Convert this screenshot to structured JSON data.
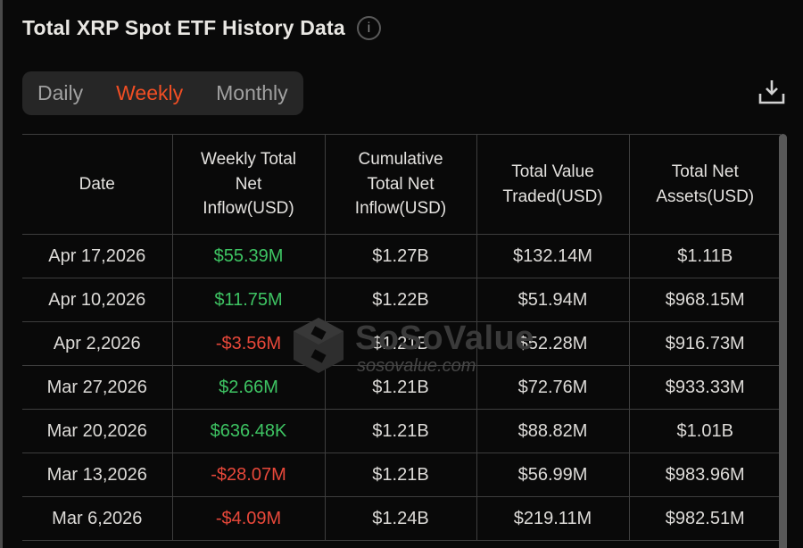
{
  "header": {
    "title": "Total XRP Spot ETF History Data"
  },
  "tabs": {
    "items": [
      {
        "label": "Daily",
        "active": false
      },
      {
        "label": "Weekly",
        "active": true
      },
      {
        "label": "Monthly",
        "active": false
      }
    ]
  },
  "table": {
    "columns": [
      "Date",
      "Weekly Total Net Inflow(USD)",
      "Cumulative Total Net Inflow(USD)",
      "Total Value Traded(USD)",
      "Total Net Assets(USD)"
    ],
    "rows": [
      {
        "date": "Apr 17,2026",
        "weekly_net_inflow": "$55.39M",
        "sign": "positive",
        "cumulative_total_net_inflow": "$1.27B",
        "total_value_traded": "$132.14M",
        "total_net_assets": "$1.11B"
      },
      {
        "date": "Apr 10,2026",
        "weekly_net_inflow": "$11.75M",
        "sign": "positive",
        "cumulative_total_net_inflow": "$1.22B",
        "total_value_traded": "$51.94M",
        "total_net_assets": "$968.15M"
      },
      {
        "date": "Apr 2,2026",
        "weekly_net_inflow": "-$3.56M",
        "sign": "negative",
        "cumulative_total_net_inflow": "$1.21B",
        "total_value_traded": "$52.28M",
        "total_net_assets": "$916.73M"
      },
      {
        "date": "Mar 27,2026",
        "weekly_net_inflow": "$2.66M",
        "sign": "positive",
        "cumulative_total_net_inflow": "$1.21B",
        "total_value_traded": "$72.76M",
        "total_net_assets": "$933.33M"
      },
      {
        "date": "Mar 20,2026",
        "weekly_net_inflow": "$636.48K",
        "sign": "positive",
        "cumulative_total_net_inflow": "$1.21B",
        "total_value_traded": "$88.82M",
        "total_net_assets": "$1.01B"
      },
      {
        "date": "Mar 13,2026",
        "weekly_net_inflow": "-$28.07M",
        "sign": "negative",
        "cumulative_total_net_inflow": "$1.21B",
        "total_value_traded": "$56.99M",
        "total_net_assets": "$983.96M"
      },
      {
        "date": "Mar 6,2026",
        "weekly_net_inflow": "-$4.09M",
        "sign": "negative",
        "cumulative_total_net_inflow": "$1.24B",
        "total_value_traded": "$219.11M",
        "total_net_assets": "$982.51M"
      }
    ]
  },
  "watermark": {
    "brand": "SoSoValue",
    "domain": "sosovalue.com"
  },
  "icons": {
    "info": "info-circle",
    "download": "download-tray-arrow"
  },
  "colors": {
    "positive": "#3ec463",
    "negative": "#e8483a",
    "accent": "#f14e24",
    "background": "#090909",
    "border": "#3e3e3e",
    "tabbar_bg": "#262626"
  }
}
